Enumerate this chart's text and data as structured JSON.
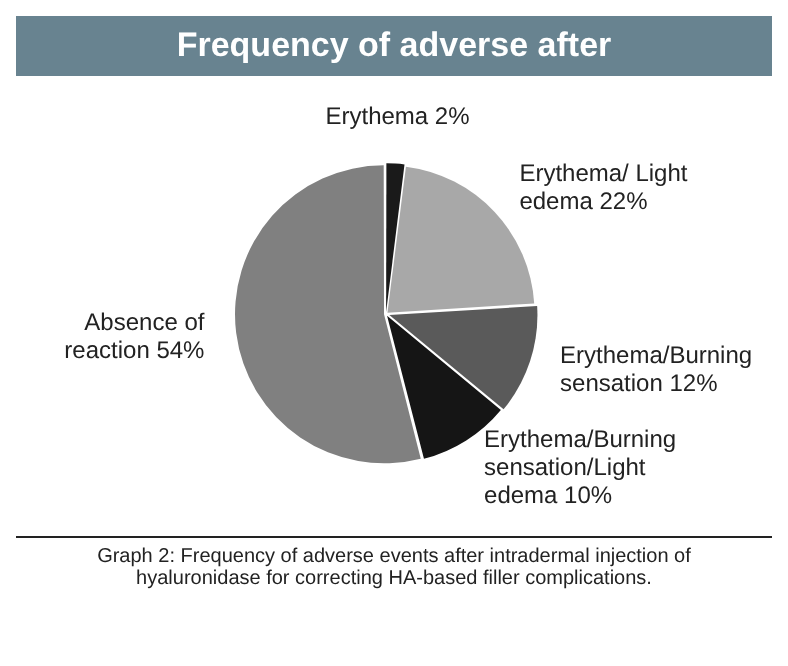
{
  "chart_data": {
    "type": "pie",
    "title": "Frequency of adverse after",
    "categories": [
      "Erythema",
      "Erythema/ Light edema",
      "Erythema/Burning sensation",
      "Erythema/Burning sensation/Light edema",
      "Absence of reaction"
    ],
    "values": [
      2,
      22,
      12,
      10,
      54
    ],
    "colors": [
      "#1a1a1a",
      "#a8a8a8",
      "#5a5a5a",
      "#151515",
      "#808080"
    ],
    "value_labels": [
      "2%",
      "22%",
      "12%",
      "10%",
      "54%"
    ],
    "annotations": [
      "Graph 2: Frequency of adverse events after intradermal injection of hyaluronidase for correcting HA-based filler complications."
    ]
  }
}
